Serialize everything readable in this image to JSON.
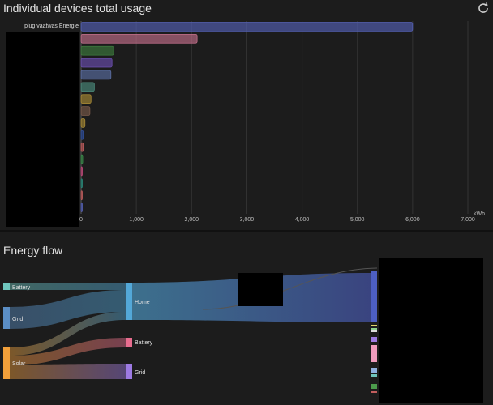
{
  "usage_card": {
    "title": "Individual devices total usage",
    "refresh_icon": "refresh-icon",
    "first_device_label": "plug vaatwas Energie"
  },
  "flow_card": {
    "title": "Energy flow",
    "sources": {
      "battery": "Battery",
      "grid": "Grid",
      "solar": "Solar"
    },
    "home": "Home",
    "sinks": {
      "battery": "Battery",
      "grid": "Grid"
    }
  },
  "chart_data": [
    {
      "type": "bar",
      "orientation": "horizontal",
      "title": "Individual devices total usage",
      "unit": "kWh",
      "xlim": [
        0,
        7000
      ],
      "x_ticks": [
        "0",
        "1,000",
        "2,000",
        "3,000",
        "4,000",
        "5,000",
        "6,000",
        "7,000"
      ],
      "categories": [
        "plug vaatwas Energie",
        "",
        "",
        "",
        "",
        "",
        "",
        "",
        "",
        "",
        "",
        "",
        "",
        "",
        "",
        ""
      ],
      "values": [
        6000,
        2100,
        590,
        560,
        540,
        240,
        180,
        160,
        70,
        40,
        40,
        30,
        20,
        15,
        10,
        5
      ],
      "colors": [
        "#5561b5",
        "#c26f8b",
        "#3e7b3e",
        "#6c4fb0",
        "#5b6ea3",
        "#4c8c7c",
        "#a88a35",
        "#7a5a4a",
        "#a88a35",
        "#2f4f9a",
        "#c25e5e",
        "#3a8a4a",
        "#c04a7a",
        "#2a8a7a",
        "#c25e5e",
        "#5561b5"
      ]
    }
  ]
}
